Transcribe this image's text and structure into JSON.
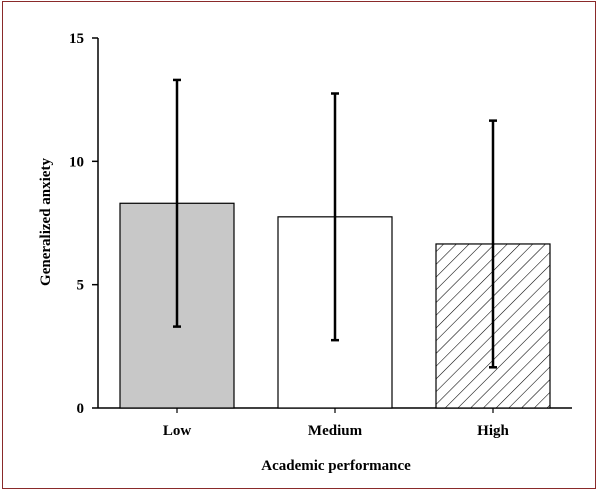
{
  "chart_data": {
    "type": "bar",
    "title": "",
    "xlabel": "Academic performance",
    "ylabel": "Generalized anxiety",
    "categories": [
      "Low",
      "Medium",
      "High"
    ],
    "values": [
      8.3,
      7.75,
      6.65
    ],
    "error": [
      5.0,
      5.0,
      5.0
    ],
    "ylim": [
      0,
      15
    ],
    "yticks": [
      "0",
      "5",
      "10",
      "15"
    ],
    "bar_fills": [
      "#c8c8c8",
      "#ffffff",
      "hatch"
    ],
    "grid": false,
    "legend": "none"
  }
}
